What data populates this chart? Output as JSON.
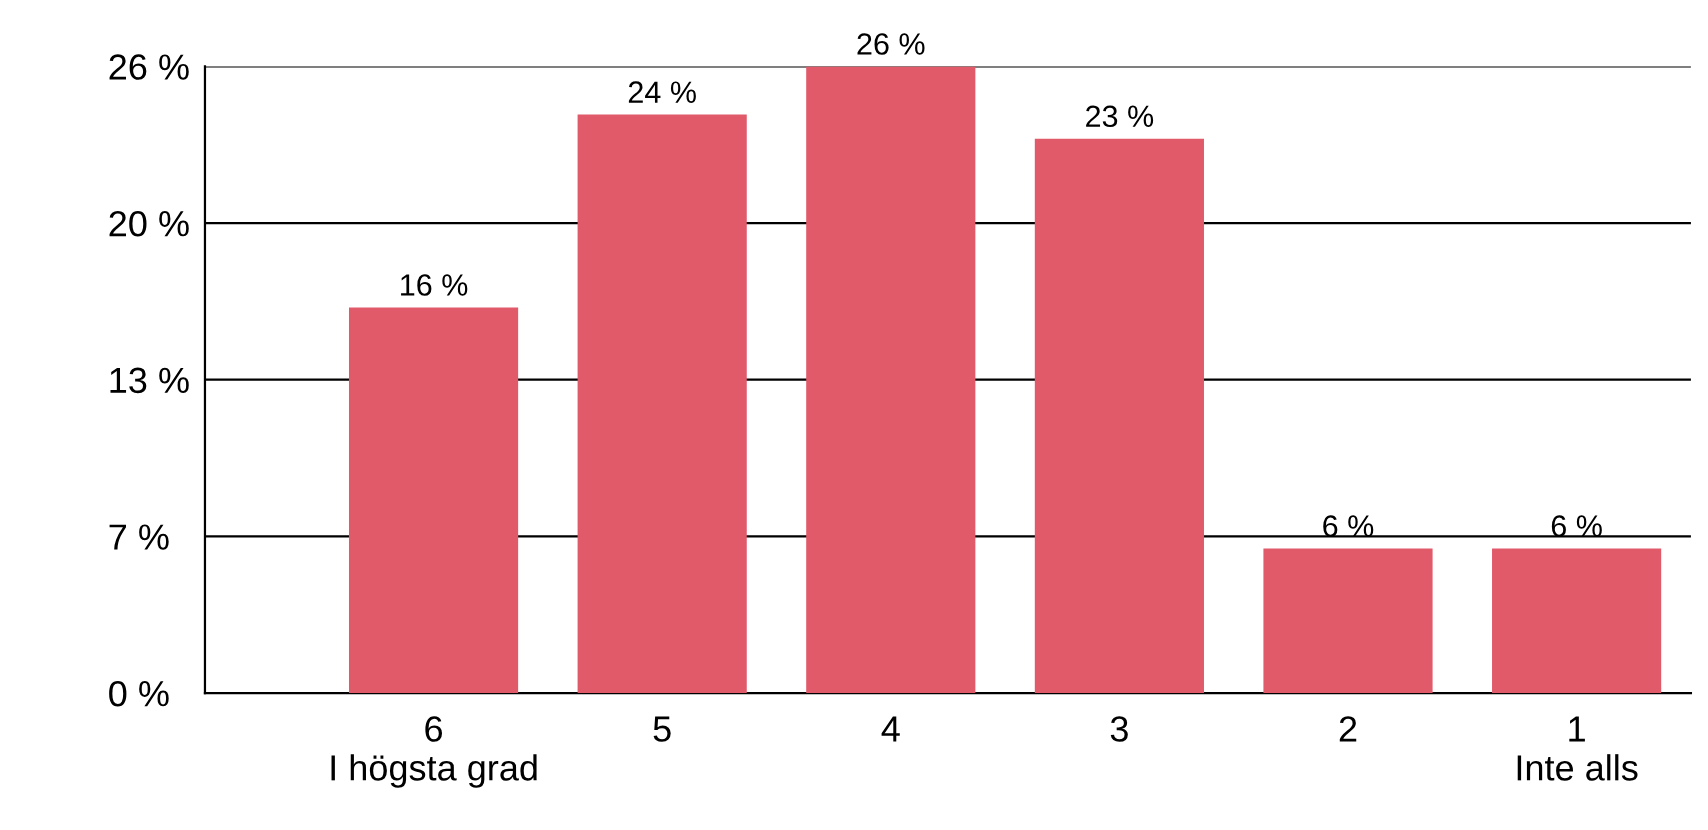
{
  "chart_data": {
    "type": "bar",
    "categories": [
      "6\nI högsta grad",
      "5",
      "4",
      "3",
      "2",
      "1\nInte alls"
    ],
    "values": [
      16,
      24,
      26,
      23,
      6,
      6
    ],
    "value_labels": [
      "16 %",
      "24 %",
      "26 %",
      "23 %",
      "6 %",
      "6 %"
    ],
    "color": "#e05a6a",
    "ylim": [
      0,
      26
    ],
    "yticks": [
      {
        "value": 0,
        "label": "0 %"
      },
      {
        "value": 6.5,
        "label": "7 %"
      },
      {
        "value": 13,
        "label": "13 %"
      },
      {
        "value": 19.5,
        "label": "20 %"
      },
      {
        "value": 26,
        "label": "26 %"
      }
    ],
    "grid": "y",
    "legend": false
  }
}
